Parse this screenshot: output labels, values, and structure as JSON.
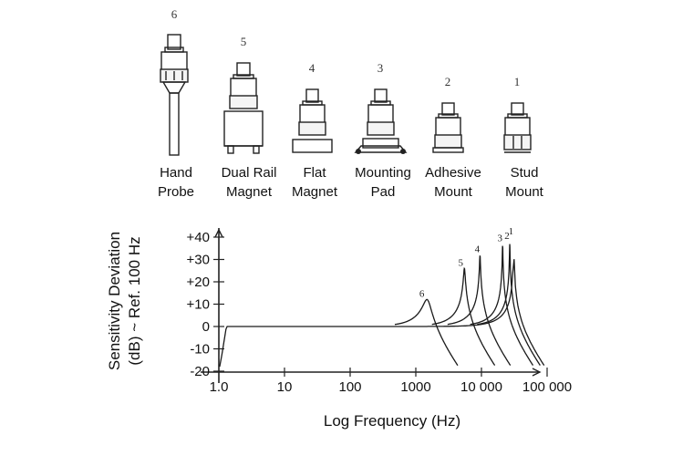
{
  "mounts": [
    {
      "number": "6",
      "line1": "Hand",
      "line2": "Probe"
    },
    {
      "number": "5",
      "line1": "Dual Rail",
      "line2": "Magnet"
    },
    {
      "number": "4",
      "line1": "Flat",
      "line2": "Magnet"
    },
    {
      "number": "3",
      "line1": "Mounting",
      "line2": "Pad"
    },
    {
      "number": "2",
      "line1": "Adhesive",
      "line2": "Mount"
    },
    {
      "number": "1",
      "line1": "Stud",
      "line2": "Mount"
    }
  ],
  "chart_data": {
    "type": "line",
    "xlabel": "Log Frequency (Hz)",
    "ylabel_line1": "Sensitivity Deviation",
    "ylabel_line2": "(dB) ~ Ref. 100 Hz",
    "x_scale": "log",
    "xlim": [
      1.0,
      100000
    ],
    "ylim": [
      -20,
      40
    ],
    "x_tick_labels": [
      "1.0",
      "10",
      "100",
      "1000",
      "10 000",
      "100 000"
    ],
    "y_tick_labels": [
      "+40",
      "+30",
      "+20",
      "+10",
      "0",
      "-10",
      "-20"
    ],
    "series": [
      {
        "name": "6",
        "resonance_hz": 1500,
        "peak_db": 12
      },
      {
        "name": "5",
        "resonance_hz": 5500,
        "peak_db": 26
      },
      {
        "name": "4",
        "resonance_hz": 9500,
        "peak_db": 32
      },
      {
        "name": "3",
        "resonance_hz": 21000,
        "peak_db": 37
      },
      {
        "name": "2",
        "resonance_hz": 27000,
        "peak_db": 38
      },
      {
        "name": "1",
        "resonance_hz": 31000,
        "peak_db": 40
      }
    ]
  }
}
